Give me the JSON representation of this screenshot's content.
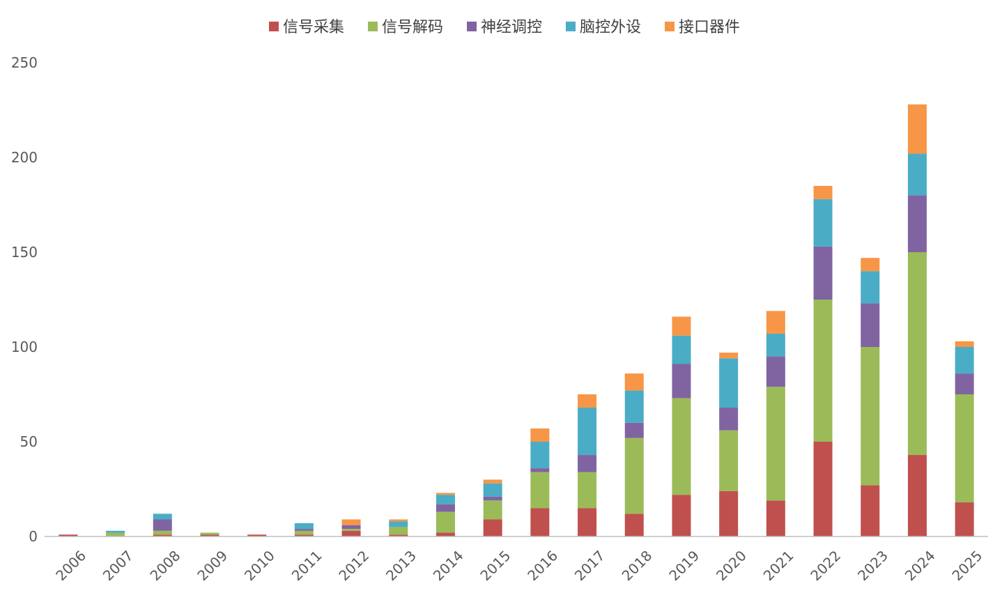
{
  "chart_data": {
    "type": "bar",
    "stacked": true,
    "categories": [
      "2006",
      "2007",
      "2008",
      "2009",
      "2010",
      "2011",
      "2012",
      "2013",
      "2014",
      "2015",
      "2016",
      "2017",
      "2018",
      "2019",
      "2020",
      "2021",
      "2022",
      "2023",
      "2024",
      "2025"
    ],
    "series": [
      {
        "name": "信号采集",
        "color": "#c0504d",
        "values": [
          1,
          0,
          1,
          1,
          1,
          1,
          3,
          1,
          2,
          9,
          15,
          15,
          12,
          22,
          24,
          19,
          50,
          27,
          43,
          18
        ]
      },
      {
        "name": "信号解码",
        "color": "#9bbb59",
        "values": [
          0,
          2,
          2,
          1,
          0,
          2,
          1,
          4,
          11,
          10,
          19,
          19,
          40,
          51,
          32,
          60,
          75,
          73,
          107,
          57
        ]
      },
      {
        "name": "神经调控",
        "color": "#8064a2",
        "values": [
          0,
          0,
          6,
          0,
          0,
          1,
          2,
          0,
          4,
          2,
          2,
          9,
          8,
          18,
          12,
          16,
          28,
          23,
          30,
          11
        ]
      },
      {
        "name": "脑控外设",
        "color": "#4bacc6",
        "values": [
          0,
          1,
          3,
          0,
          0,
          3,
          0,
          3,
          5,
          7,
          14,
          25,
          17,
          15,
          26,
          12,
          25,
          17,
          22,
          14
        ]
      },
      {
        "name": "接口器件",
        "color": "#f79646",
        "values": [
          0,
          0,
          0,
          0,
          0,
          0,
          3,
          1,
          1,
          2,
          7,
          7,
          9,
          10,
          3,
          12,
          7,
          7,
          26,
          3
        ]
      }
    ],
    "yticks": [
      "0",
      "50",
      "100",
      "150",
      "200",
      "250"
    ],
    "ylim": [
      0,
      250
    ],
    "grid": false,
    "legend_position": "top-center",
    "title": "",
    "xlabel": "",
    "ylabel": ""
  }
}
